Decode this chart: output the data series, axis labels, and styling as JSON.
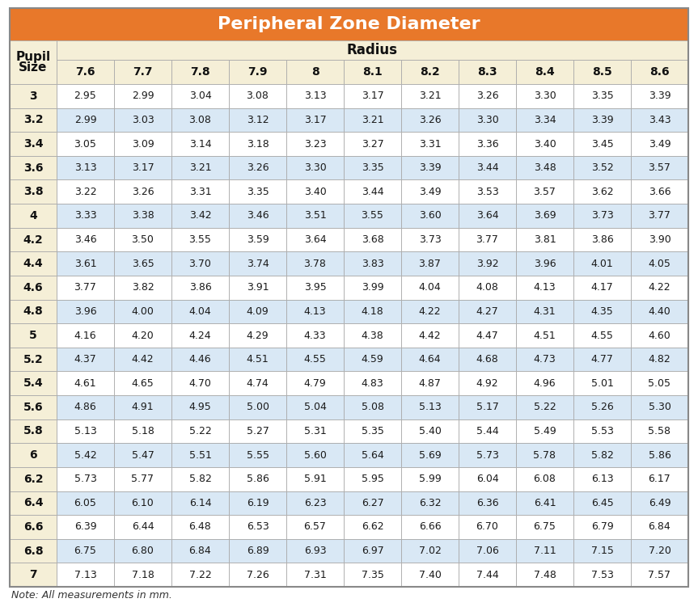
{
  "title": "Peripheral Zone Diameter",
  "title_bg": "#E8782A",
  "title_color": "#FFFFFF",
  "header_bg": "#F5EFD7",
  "header_color": "#1A1A1A",
  "row_bg_even": "#FFFFFF",
  "row_bg_odd": "#D9E8F5",
  "cell_color": "#1A1A1A",
  "border_color": "#AAAAAA",
  "note": "Note: All measurements in mm.",
  "pupil_label_1": "Pupil",
  "pupil_label_2": "Size",
  "radius_label": "Radius",
  "col_headers": [
    "7.6",
    "7.7",
    "7.8",
    "7.9",
    "8",
    "8.1",
    "8.2",
    "8.3",
    "8.4",
    "8.5",
    "8.6"
  ],
  "row_headers": [
    "3",
    "3.2",
    "3.4",
    "3.6",
    "3.8",
    "4",
    "4.2",
    "4.4",
    "4.6",
    "4.8",
    "5",
    "5.2",
    "5.4",
    "5.6",
    "5.8",
    "6",
    "6.2",
    "6.4",
    "6.6",
    "6.8",
    "7"
  ],
  "table_data": [
    [
      2.95,
      2.99,
      3.04,
      3.08,
      3.13,
      3.17,
      3.21,
      3.26,
      3.3,
      3.35,
      3.39
    ],
    [
      2.99,
      3.03,
      3.08,
      3.12,
      3.17,
      3.21,
      3.26,
      3.3,
      3.34,
      3.39,
      3.43
    ],
    [
      3.05,
      3.09,
      3.14,
      3.18,
      3.23,
      3.27,
      3.31,
      3.36,
      3.4,
      3.45,
      3.49
    ],
    [
      3.13,
      3.17,
      3.21,
      3.26,
      3.3,
      3.35,
      3.39,
      3.44,
      3.48,
      3.52,
      3.57
    ],
    [
      3.22,
      3.26,
      3.31,
      3.35,
      3.4,
      3.44,
      3.49,
      3.53,
      3.57,
      3.62,
      3.66
    ],
    [
      3.33,
      3.38,
      3.42,
      3.46,
      3.51,
      3.55,
      3.6,
      3.64,
      3.69,
      3.73,
      3.77
    ],
    [
      3.46,
      3.5,
      3.55,
      3.59,
      3.64,
      3.68,
      3.73,
      3.77,
      3.81,
      3.86,
      3.9
    ],
    [
      3.61,
      3.65,
      3.7,
      3.74,
      3.78,
      3.83,
      3.87,
      3.92,
      3.96,
      4.01,
      4.05
    ],
    [
      3.77,
      3.82,
      3.86,
      3.91,
      3.95,
      3.99,
      4.04,
      4.08,
      4.13,
      4.17,
      4.22
    ],
    [
      3.96,
      4.0,
      4.04,
      4.09,
      4.13,
      4.18,
      4.22,
      4.27,
      4.31,
      4.35,
      4.4
    ],
    [
      4.16,
      4.2,
      4.24,
      4.29,
      4.33,
      4.38,
      4.42,
      4.47,
      4.51,
      4.55,
      4.6
    ],
    [
      4.37,
      4.42,
      4.46,
      4.51,
      4.55,
      4.59,
      4.64,
      4.68,
      4.73,
      4.77,
      4.82
    ],
    [
      4.61,
      4.65,
      4.7,
      4.74,
      4.79,
      4.83,
      4.87,
      4.92,
      4.96,
      5.01,
      5.05
    ],
    [
      4.86,
      4.91,
      4.95,
      5.0,
      5.04,
      5.08,
      5.13,
      5.17,
      5.22,
      5.26,
      5.3
    ],
    [
      5.13,
      5.18,
      5.22,
      5.27,
      5.31,
      5.35,
      5.4,
      5.44,
      5.49,
      5.53,
      5.58
    ],
    [
      5.42,
      5.47,
      5.51,
      5.55,
      5.6,
      5.64,
      5.69,
      5.73,
      5.78,
      5.82,
      5.86
    ],
    [
      5.73,
      5.77,
      5.82,
      5.86,
      5.91,
      5.95,
      5.99,
      6.04,
      6.08,
      6.13,
      6.17
    ],
    [
      6.05,
      6.1,
      6.14,
      6.19,
      6.23,
      6.27,
      6.32,
      6.36,
      6.41,
      6.45,
      6.49
    ],
    [
      6.39,
      6.44,
      6.48,
      6.53,
      6.57,
      6.62,
      6.66,
      6.7,
      6.75,
      6.79,
      6.84
    ],
    [
      6.75,
      6.8,
      6.84,
      6.89,
      6.93,
      6.97,
      7.02,
      7.06,
      7.11,
      7.15,
      7.2
    ],
    [
      7.13,
      7.18,
      7.22,
      7.26,
      7.31,
      7.35,
      7.4,
      7.44,
      7.48,
      7.53,
      7.57
    ]
  ],
  "figw": 8.63,
  "figh": 7.51,
  "dpi": 100
}
